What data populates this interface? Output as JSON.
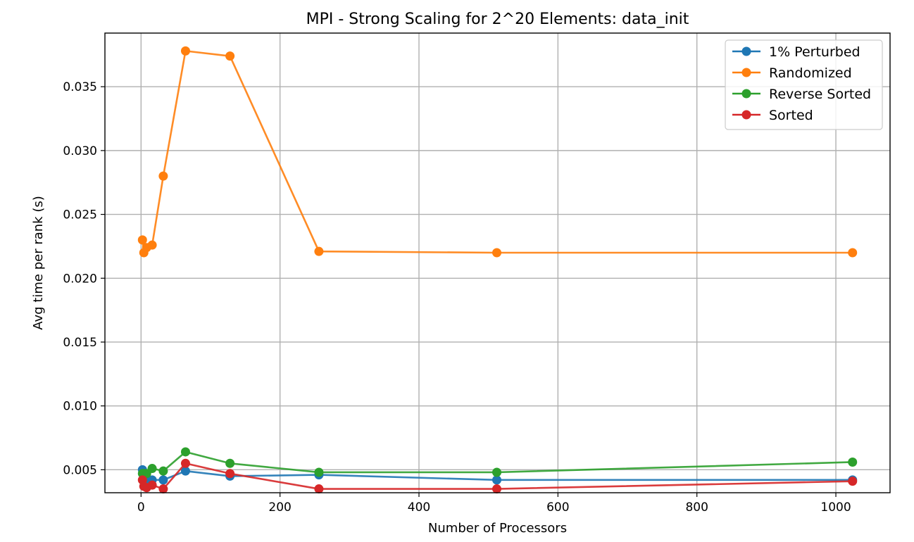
{
  "chart_data": {
    "type": "line",
    "title": "MPI - Strong Scaling for 2^20 Elements: data_init",
    "xlabel": "Number of Processors",
    "ylabel": "Avg time per rank (s)",
    "xlim": [
      -52,
      1078
    ],
    "ylim": [
      0.0032,
      0.0392
    ],
    "xticks": [
      0,
      200,
      400,
      600,
      800,
      1000
    ],
    "xtick_labels": [
      "0",
      "200",
      "400",
      "600",
      "800",
      "1000"
    ],
    "yticks": [
      0.005,
      0.01,
      0.015,
      0.02,
      0.025,
      0.03,
      0.035
    ],
    "ytick_labels": [
      "0.005",
      "0.010",
      "0.015",
      "0.020",
      "0.025",
      "0.030",
      "0.035"
    ],
    "grid": true,
    "legend_position": "top-right",
    "x": [
      2,
      4,
      8,
      16,
      32,
      64,
      128,
      256,
      512,
      1024
    ],
    "series": [
      {
        "name": "1% Perturbed",
        "color": "#1f77b4",
        "values": [
          0.005,
          0.0045,
          0.0042,
          0.0042,
          0.0042,
          0.0049,
          0.0045,
          0.0046,
          0.0042,
          0.0042
        ]
      },
      {
        "name": "Randomized",
        "color": "#ff7f0e",
        "values": [
          0.023,
          0.022,
          0.0224,
          0.0226,
          0.028,
          0.0378,
          0.0374,
          0.0221,
          0.022,
          0.022
        ]
      },
      {
        "name": "Reverse Sorted",
        "color": "#2ca02c",
        "values": [
          0.0047,
          0.0047,
          0.0047,
          0.0051,
          0.0049,
          0.0064,
          0.0055,
          0.0048,
          0.0048,
          0.0056
        ]
      },
      {
        "name": "Sorted",
        "color": "#d62728",
        "values": [
          0.0042,
          0.0037,
          0.0036,
          0.0038,
          0.0035,
          0.0055,
          0.0047,
          0.0035,
          0.0035,
          0.0041
        ]
      }
    ]
  }
}
